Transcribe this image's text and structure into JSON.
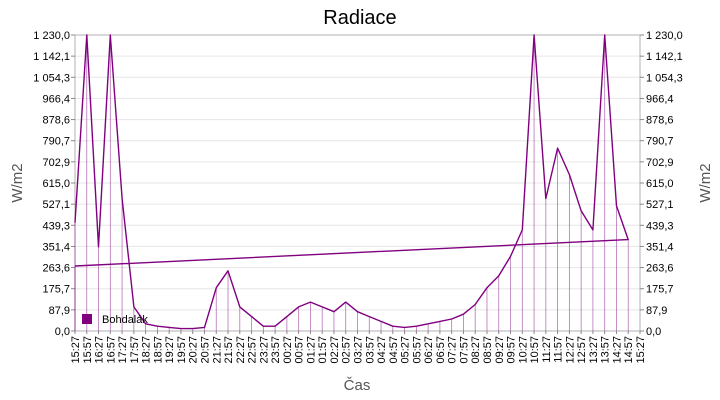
{
  "chart_data": {
    "type": "line",
    "title": "Radiace",
    "xlabel": "Čas",
    "ylabel": "W/m2",
    "ylabel_right": "W/m2",
    "ylim": [
      0,
      1230
    ],
    "grid": true,
    "legend_position": "bottom-left",
    "y_ticks": [
      0.0,
      87.9,
      175.7,
      263.6,
      351.4,
      439.3,
      527.1,
      615.0,
      702.9,
      790.7,
      878.6,
      966.4,
      1054.3,
      1142.1,
      1230.0
    ],
    "y_tick_labels": [
      "0,0",
      "87,9",
      "175,7",
      "263,6",
      "351,4",
      "439,3",
      "527,1",
      "615,0",
      "702,9",
      "790,7",
      "878,6",
      "966,4",
      "1 054,3",
      "1 142,1",
      "1 230,0"
    ],
    "x_tick_labels": [
      "15:27",
      "15:57",
      "16:27",
      "16:57",
      "17:27",
      "17:57",
      "18:27",
      "18:57",
      "19:27",
      "19:57",
      "20:27",
      "20:57",
      "21:27",
      "21:57",
      "22:27",
      "22:57",
      "23:27",
      "23:57",
      "00:27",
      "00:57",
      "01:27",
      "01:57",
      "02:27",
      "02:57",
      "03:27",
      "03:57",
      "04:27",
      "04:57",
      "05:27",
      "05:57",
      "06:27",
      "06:57",
      "07:27",
      "07:57",
      "08:27",
      "08:57",
      "09:27",
      "09:57",
      "10:27",
      "10:57",
      "11:27",
      "11:57",
      "12:27",
      "12:57",
      "13:27",
      "13:57",
      "14:27",
      "14:57",
      "15:27"
    ],
    "series": [
      {
        "name": "Bohdalák",
        "color": "#800080",
        "x": [
          "15:27",
          "15:57",
          "16:27",
          "16:57",
          "17:27",
          "17:57",
          "18:27",
          "18:57",
          "19:27",
          "19:57",
          "20:27",
          "20:57",
          "21:27",
          "21:57",
          "22:27",
          "22:57",
          "23:27",
          "23:57",
          "00:27",
          "00:57",
          "01:27",
          "01:57",
          "02:27",
          "02:57",
          "03:27",
          "03:57",
          "04:27",
          "04:57",
          "05:27",
          "05:57",
          "06:27",
          "06:57",
          "07:27",
          "07:57",
          "08:27",
          "08:57",
          "09:27",
          "09:57",
          "10:27",
          "10:57",
          "11:27",
          "11:57",
          "12:27",
          "12:57",
          "13:27",
          "13:57",
          "14:27",
          "14:57",
          "15:27"
        ],
        "values": [
          450,
          1230,
          350,
          1230,
          550,
          100,
          30,
          20,
          15,
          10,
          10,
          15,
          180,
          250,
          100,
          60,
          20,
          20,
          60,
          100,
          120,
          100,
          80,
          120,
          80,
          60,
          40,
          20,
          15,
          20,
          30,
          40,
          50,
          70,
          110,
          180,
          230,
          310,
          420,
          1230,
          550,
          760,
          650,
          500,
          420,
          1230,
          520,
          380,
          270
        ]
      }
    ]
  }
}
